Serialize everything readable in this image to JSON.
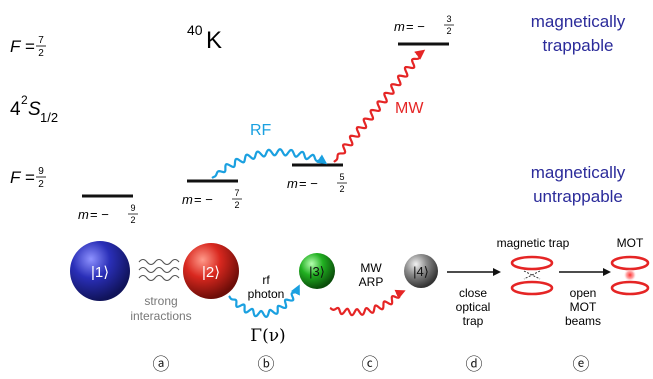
{
  "colors": {
    "ball1": "#2a2fb8",
    "ball2": "#d9281f",
    "ball3": "#21b021",
    "ball4": "#8c8c8c",
    "rf": "#1aa0e0",
    "mw": "#e52525",
    "trap_ring": "#e52525",
    "blue_label": "#2b2b9a",
    "gray_text": "#777777"
  },
  "header": {
    "isotope_mass": "40",
    "isotope_symbol": "K",
    "state_prefix": "4",
    "state_sup": "2",
    "state_letter": "S",
    "state_sub": "1/2"
  },
  "hyperfine": {
    "upper": {
      "F": "F",
      "eq": "=",
      "num": "7",
      "den": "2"
    },
    "lower": {
      "F": "F",
      "eq": "=",
      "num": "9",
      "den": "2"
    }
  },
  "levels": {
    "m_minus_9_2": {
      "m": "m",
      "eq": "= −",
      "num": "9",
      "den": "2"
    },
    "m_minus_7_2": {
      "m": "m",
      "eq": "= −",
      "num": "7",
      "den": "2"
    },
    "m_minus_5_2": {
      "m": "m",
      "eq": "= −",
      "num": "5",
      "den": "2"
    },
    "m_minus_3_2": {
      "m": "m",
      "eq": "= −",
      "num": "3",
      "den": "2"
    }
  },
  "labels": {
    "magnetically_trappable": [
      "magnetically",
      "trappable"
    ],
    "magnetically_untrappable": [
      "magnetically",
      "untrappable"
    ],
    "rf": "RF",
    "mw": "MW"
  },
  "sequence": {
    "states": [
      "|1⟩",
      "|2⟩",
      "|3⟩",
      "|4⟩"
    ],
    "strong_interactions": [
      "strong",
      "interactions"
    ],
    "rf_photon": [
      "rf",
      "photon"
    ],
    "gamma": "Γ(ν)",
    "mw_arp": [
      "MW",
      "ARP"
    ],
    "close_optical_trap": [
      "close",
      "optical",
      "trap"
    ],
    "magnetic_trap": "magnetic trap",
    "open_mot_beams": [
      "open",
      "MOT",
      "beams"
    ],
    "mot": "MOT"
  },
  "steps": [
    "ⓐ",
    "ⓑ",
    "ⓒ",
    "ⓓ",
    "ⓔ"
  ]
}
